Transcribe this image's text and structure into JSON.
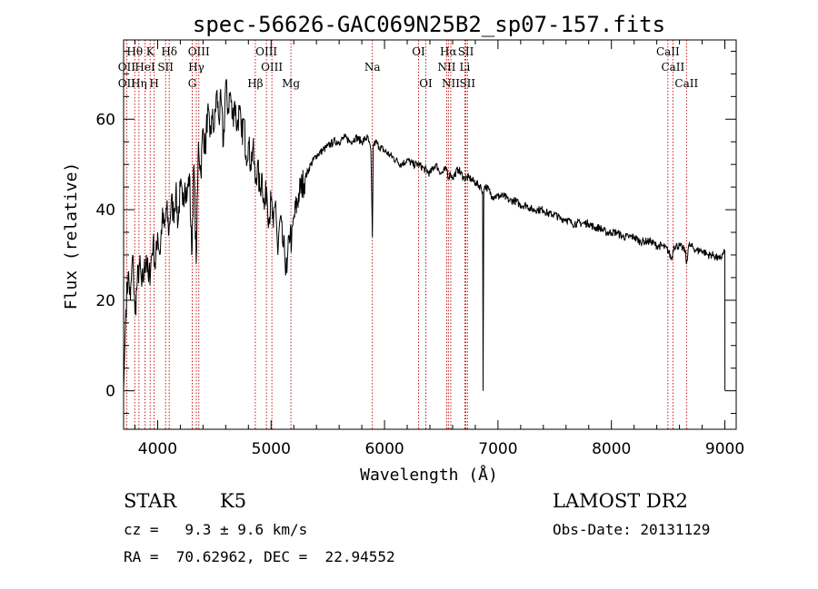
{
  "chart_data": {
    "type": "line",
    "title": "spec-56626-GAC069N25B2_sp07-157.fits",
    "xlabel": "Wavelength (Å)",
    "ylabel": "Flux (relative)",
    "xlim": [
      3700,
      9100
    ],
    "ylim": [
      -8.5,
      77.5
    ],
    "xticks": [
      4000,
      5000,
      6000,
      7000,
      8000,
      9000
    ],
    "yticks": [
      0,
      20,
      40,
      60
    ],
    "grid": false,
    "series": [
      {
        "x": [
          3700,
          3720,
          3740,
          3760,
          3780,
          3800,
          3820,
          3840,
          3860,
          3880,
          3900,
          3920,
          3940,
          3960,
          3980,
          4000,
          4020,
          4040,
          4060,
          4080,
          4100,
          4120,
          4140,
          4160,
          4180,
          4200,
          4220,
          4240,
          4260,
          4280,
          4300,
          4320,
          4340,
          4360,
          4380,
          4400,
          4420,
          4440,
          4460,
          4480,
          4500,
          4520,
          4540,
          4560,
          4580,
          4600,
          4620,
          4640,
          4660,
          4680,
          4700,
          4720,
          4740,
          4760,
          4780,
          4800,
          4820,
          4840,
          4860,
          4880,
          4900,
          4920,
          4940,
          4960,
          4980,
          5000,
          5020,
          5040,
          5060,
          5080,
          5100,
          5120,
          5140,
          5160,
          5170,
          5180,
          5200,
          5250,
          5300,
          5350,
          5400,
          5450,
          5500,
          5550,
          5600,
          5650,
          5700,
          5750,
          5800,
          5850,
          5880,
          5893,
          5900,
          5920,
          5950,
          6000,
          6050,
          6100,
          6150,
          6200,
          6250,
          6300,
          6350,
          6400,
          6450,
          6500,
          6550,
          6563,
          6580,
          6600,
          6650,
          6700,
          6750,
          6800,
          6850,
          6865,
          6869,
          6875,
          6880,
          6900,
          6950,
          7000,
          7050,
          7100,
          7150,
          7200,
          7250,
          7300,
          7350,
          7400,
          7450,
          7500,
          7550,
          7600,
          7650,
          7700,
          7750,
          7800,
          7850,
          7900,
          7950,
          8000,
          8050,
          8100,
          8150,
          8200,
          8250,
          8300,
          8350,
          8400,
          8450,
          8500,
          8530,
          8550,
          8600,
          8650,
          8662,
          8680,
          8700,
          8750,
          8800,
          8850,
          8900,
          8950,
          8980,
          9000,
          9001
        ],
        "y": [
          0,
          18,
          26,
          20,
          30,
          17,
          24,
          28,
          23,
          26,
          30,
          24,
          28,
          33,
          27,
          35,
          30,
          38,
          36,
          40,
          35,
          42,
          39,
          44,
          37,
          45,
          41,
          46,
          43,
          48,
          30,
          50,
          28,
          55,
          48,
          58,
          53,
          62,
          56,
          60,
          58,
          66,
          60,
          64,
          54,
          68,
          62,
          66,
          60,
          64,
          58,
          62,
          56,
          60,
          52,
          55,
          50,
          54,
          46,
          50,
          44,
          48,
          40,
          45,
          38,
          42,
          36,
          42,
          30,
          38,
          33,
          30,
          26,
          34,
          36,
          32,
          38,
          44,
          47,
          50,
          52,
          53,
          54,
          55,
          55,
          56,
          55,
          56,
          55,
          56,
          53,
          34,
          54,
          55,
          54,
          53,
          52,
          51,
          50,
          51,
          50,
          50,
          49,
          48,
          50,
          48,
          49,
          47,
          48,
          47,
          49,
          47,
          47,
          46,
          45,
          44,
          0,
          44,
          45,
          45,
          43,
          43,
          43,
          42,
          42,
          41,
          41,
          40,
          40,
          40,
          39,
          39,
          38,
          38,
          37,
          37,
          37,
          37,
          36,
          36,
          35,
          35,
          35,
          34,
          34,
          34,
          33,
          33,
          33,
          32,
          32,
          31,
          29,
          32,
          32,
          31,
          28,
          32,
          32,
          31,
          31,
          30,
          30,
          29,
          30,
          31,
          0
        ]
      }
    ],
    "line_labels": [
      {
        "name": "Hθ",
        "x": 3798,
        "row": 0
      },
      {
        "name": "OII",
        "x": 3727,
        "row": 1
      },
      {
        "name": "OII",
        "x": 3727,
        "row": 2
      },
      {
        "name": "K",
        "x": 3934,
        "row": 0
      },
      {
        "name": "Hη",
        "x": 3835,
        "row": 2
      },
      {
        "name": "HeI",
        "x": 3889,
        "row": 1
      },
      {
        "name": "SII",
        "x": 4070,
        "row": 1
      },
      {
        "name": "H",
        "x": 3969,
        "row": 2
      },
      {
        "name": "Hδ",
        "x": 4102,
        "row": 0
      },
      {
        "name": "OIII",
        "x": 4363,
        "row": 0
      },
      {
        "name": "Hγ",
        "x": 4341,
        "row": 1
      },
      {
        "name": "G",
        "x": 4305,
        "row": 2
      },
      {
        "name": "OIII",
        "x": 4959,
        "row": 0
      },
      {
        "name": "OIII",
        "x": 5007,
        "row": 1
      },
      {
        "name": "Hβ",
        "x": 4861,
        "row": 2
      },
      {
        "name": "Mg",
        "x": 5175,
        "row": 2
      },
      {
        "name": "Na",
        "x": 5893,
        "row": 1
      },
      {
        "name": "OI",
        "x": 6300,
        "row": 0
      },
      {
        "name": "OI",
        "x": 6364,
        "row": 2
      },
      {
        "name": "Hα",
        "x": 6563,
        "row": 0
      },
      {
        "name": "NII",
        "x": 6548,
        "row": 1
      },
      {
        "name": "NII",
        "x": 6584,
        "row": 2
      },
      {
        "name": "SII",
        "x": 6717,
        "row": 0
      },
      {
        "name": "Li",
        "x": 6708,
        "row": 1
      },
      {
        "name": "SII",
        "x": 6731,
        "row": 2
      },
      {
        "name": "CaII",
        "x": 8498,
        "row": 0
      },
      {
        "name": "CaII",
        "x": 8542,
        "row": 1
      },
      {
        "name": "CaII",
        "x": 8662,
        "row": 2
      }
    ],
    "marker_lines": [
      3727,
      3798,
      3835,
      3889,
      3934,
      3969,
      4070,
      4102,
      4305,
      4341,
      4363,
      4861,
      4959,
      5007,
      5175,
      5893,
      6300,
      6364,
      6548,
      6563,
      6584,
      6708,
      6717,
      6731,
      8498,
      8542,
      8662
    ],
    "colors": {
      "spectrum": "#000000",
      "markers": "#c00000",
      "labels": "#000000"
    }
  },
  "info": {
    "class": "STAR",
    "subclass": "K5",
    "survey": "LAMOST DR2",
    "redshift": "cz =   9.3 ± 9.6 km/s",
    "obsdate": "Obs-Date: 20131129",
    "coords": "RA =  70.62962, DEC =  22.94552"
  }
}
